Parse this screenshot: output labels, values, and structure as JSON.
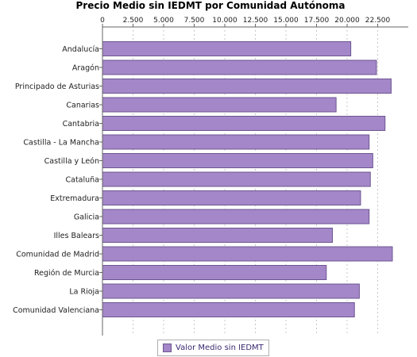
{
  "chart_data": {
    "type": "bar",
    "orientation": "horizontal",
    "title": "Precio Medio sin IEDMT por Comunidad Autónoma",
    "xlabel": "",
    "ylabel": "",
    "xlim": [
      0,
      25000
    ],
    "tick_values": [
      0,
      2500,
      5000,
      7500,
      10000,
      12500,
      15000,
      17500,
      20000,
      22500
    ],
    "tick_labels": [
      "0",
      "2.500",
      "5.000",
      "7.500",
      "10.000",
      "12.500",
      "15.000",
      "17.500",
      "20.000",
      "22.500"
    ],
    "axis_position": "top",
    "grid": true,
    "legend_position": "bottom",
    "bar_color": "#a487c8",
    "categories": [
      "Andalucía",
      "Aragón",
      "Principado de Asturias",
      "Canarias",
      "Cantabria",
      "Castilla - La Mancha",
      "Castilla y León",
      "Cataluña",
      "Extremadura",
      "Galicia",
      "Illes Balears",
      "Comunidad de Madrid",
      "Región de Murcia",
      "La Rioja",
      "Comunidad Valenciana"
    ],
    "series": [
      {
        "name": "Valor Medio sin IEDMT",
        "values": [
          20300,
          22400,
          23600,
          19100,
          23100,
          21800,
          22100,
          21900,
          21100,
          21800,
          18800,
          23700,
          18300,
          21000,
          20600
        ]
      }
    ]
  }
}
